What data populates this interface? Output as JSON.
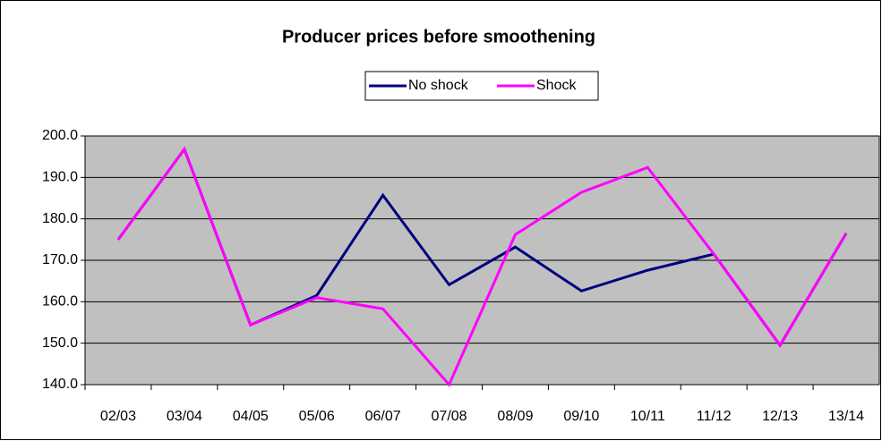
{
  "chart_data": {
    "type": "line",
    "title": "Producer prices before smoothening",
    "categories": [
      "02/03",
      "03/04",
      "04/05",
      "05/06",
      "06/07",
      "07/08",
      "08/09",
      "09/10",
      "10/11",
      "11/12",
      "12/13",
      "13/14"
    ],
    "series": [
      {
        "name": "No shock",
        "color": "#000080",
        "values": [
          175.0,
          196.8,
          154.4,
          161.5,
          185.7,
          164.1,
          173.2,
          162.6,
          167.6,
          171.5,
          149.5,
          176.5
        ]
      },
      {
        "name": "Shock",
        "color": "#ff00ff",
        "values": [
          175.0,
          196.8,
          154.4,
          161.0,
          158.3,
          140.0,
          176.2,
          186.4,
          192.4,
          171.5,
          149.5,
          176.5
        ]
      }
    ],
    "ylim": [
      140,
      200
    ],
    "yticks": [
      {
        "value": 140,
        "label": "140.0"
      },
      {
        "value": 150,
        "label": "150.0"
      },
      {
        "value": 160,
        "label": "160.0"
      },
      {
        "value": 170,
        "label": "170.0"
      },
      {
        "value": 180,
        "label": "180.0"
      },
      {
        "value": 190,
        "label": "190.0"
      },
      {
        "value": 200,
        "label": "200.0"
      }
    ],
    "grid": true,
    "legend": "top"
  }
}
